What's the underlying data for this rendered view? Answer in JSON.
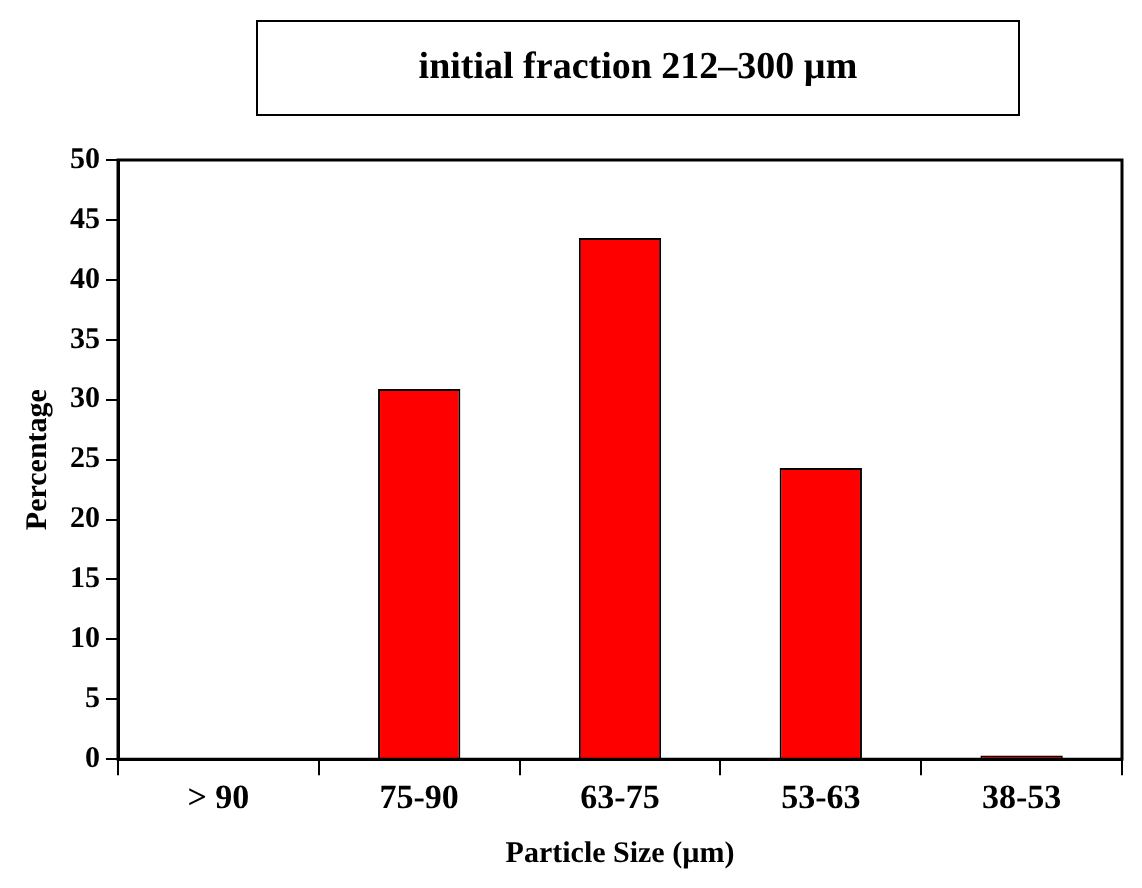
{
  "chart_data": {
    "type": "bar",
    "title": "initial fraction 212–300 µm",
    "xlabel": "Particle Size (µm)",
    "ylabel": "Percentage",
    "categories": [
      "> 90",
      "75-90",
      "63-75",
      "53-63",
      "38-53"
    ],
    "values": [
      0,
      30.9,
      43.5,
      24.3,
      0.3
    ],
    "color": "#ff0000",
    "ylim": [
      0,
      50
    ],
    "yticks": [
      0,
      5,
      10,
      15,
      20,
      25,
      30,
      35,
      40,
      45,
      50
    ],
    "grid": false,
    "legend": false
  }
}
